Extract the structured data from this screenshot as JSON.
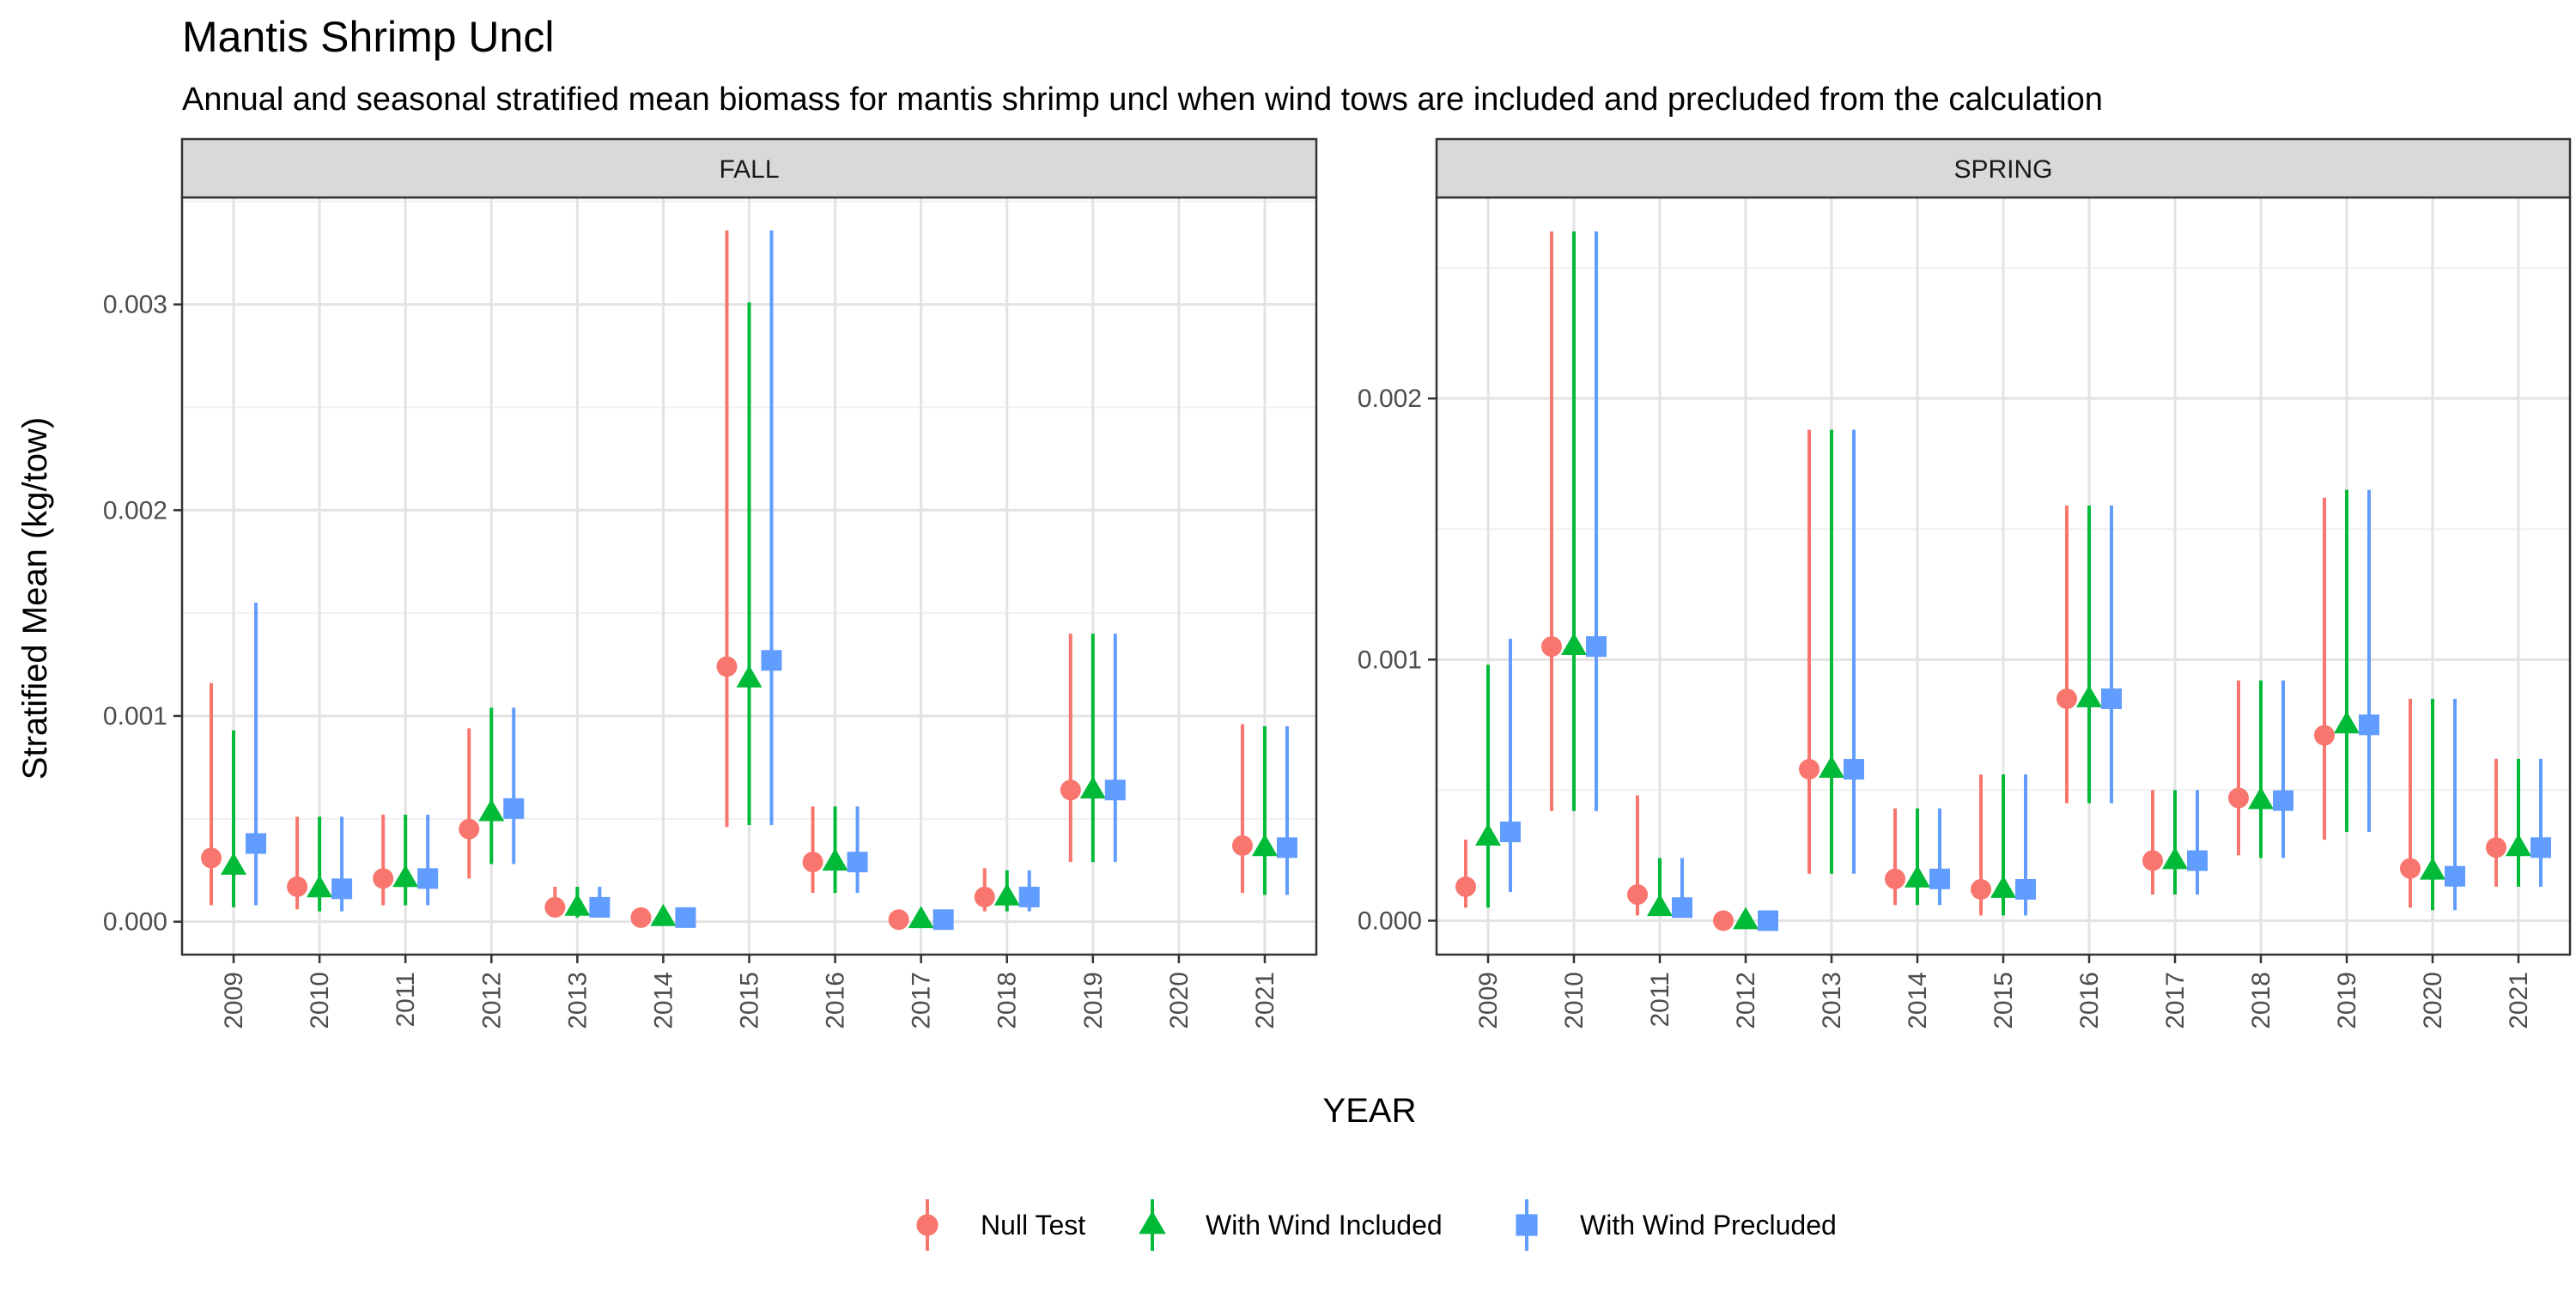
{
  "chart_data": {
    "type": "errorbar-facets",
    "title": "Mantis Shrimp Uncl",
    "subtitle": "Annual and seasonal stratified mean biomass for mantis shrimp uncl when wind tows are included and precluded from the calculation",
    "xlabel": "YEAR",
    "ylabel": "Stratified Mean (kg/tow)",
    "legend": {
      "position": "bottom",
      "series": [
        {
          "name": "Null Test",
          "color": "#F8766D",
          "shape": "circle"
        },
        {
          "name": "With Wind Included",
          "color": "#00BA38",
          "shape": "triangle"
        },
        {
          "name": "With Wind Precluded",
          "color": "#619CFF",
          "shape": "square"
        }
      ]
    },
    "years": [
      "2009",
      "2010",
      "2011",
      "2012",
      "2013",
      "2014",
      "2015",
      "2016",
      "2017",
      "2018",
      "2019",
      "2020",
      "2021"
    ],
    "panels": [
      {
        "label": "FALL",
        "ylim": [
          -0.00016,
          0.00352
        ],
        "yticks": [
          0,
          0.001,
          0.002,
          0.003
        ],
        "ytick_labels": [
          "0.000",
          "0.001",
          "0.002",
          "0.003"
        ],
        "series": [
          {
            "name": "Null Test",
            "points": [
              {
                "x": "2009",
                "y": 0.00031,
                "lo": 8e-05,
                "hi": 0.00116
              },
              {
                "x": "2010",
                "y": 0.00017,
                "lo": 6e-05,
                "hi": 0.00051
              },
              {
                "x": "2011",
                "y": 0.00021,
                "lo": 8e-05,
                "hi": 0.00052
              },
              {
                "x": "2012",
                "y": 0.00045,
                "lo": 0.00021,
                "hi": 0.00094
              },
              {
                "x": "2013",
                "y": 7e-05,
                "lo": 2e-05,
                "hi": 0.00017
              },
              {
                "x": "2014",
                "y": 2e-05,
                "lo": 0.0,
                "hi": 6e-05
              },
              {
                "x": "2015",
                "y": 0.00124,
                "lo": 0.00046,
                "hi": 0.00336
              },
              {
                "x": "2016",
                "y": 0.00029,
                "lo": 0.00014,
                "hi": 0.00056
              },
              {
                "x": "2017",
                "y": 1e-05,
                "lo": 0.0,
                "hi": 3e-05
              },
              {
                "x": "2018",
                "y": 0.00012,
                "lo": 5e-05,
                "hi": 0.00026
              },
              {
                "x": "2019",
                "y": 0.00064,
                "lo": 0.00029,
                "hi": 0.0014
              },
              {
                "x": "2021",
                "y": 0.00037,
                "lo": 0.00014,
                "hi": 0.00096
              }
            ]
          },
          {
            "name": "With Wind Included",
            "points": [
              {
                "x": "2009",
                "y": 0.00027,
                "lo": 7e-05,
                "hi": 0.00093
              },
              {
                "x": "2010",
                "y": 0.00016,
                "lo": 5e-05,
                "hi": 0.00051
              },
              {
                "x": "2011",
                "y": 0.00021,
                "lo": 8e-05,
                "hi": 0.00052
              },
              {
                "x": "2012",
                "y": 0.00053,
                "lo": 0.00028,
                "hi": 0.00104
              },
              {
                "x": "2013",
                "y": 7e-05,
                "lo": 2e-05,
                "hi": 0.00017
              },
              {
                "x": "2014",
                "y": 2e-05,
                "lo": 0.0,
                "hi": 6e-05
              },
              {
                "x": "2015",
                "y": 0.00118,
                "lo": 0.00047,
                "hi": 0.00301
              },
              {
                "x": "2016",
                "y": 0.00029,
                "lo": 0.00014,
                "hi": 0.00056
              },
              {
                "x": "2017",
                "y": 1e-05,
                "lo": 0.0,
                "hi": 3e-05
              },
              {
                "x": "2018",
                "y": 0.00012,
                "lo": 5e-05,
                "hi": 0.00025
              },
              {
                "x": "2019",
                "y": 0.00064,
                "lo": 0.00029,
                "hi": 0.0014
              },
              {
                "x": "2021",
                "y": 0.00036,
                "lo": 0.00013,
                "hi": 0.00095
              }
            ]
          },
          {
            "name": "With Wind Precluded",
            "points": [
              {
                "x": "2009",
                "y": 0.00038,
                "lo": 8e-05,
                "hi": 0.00155
              },
              {
                "x": "2010",
                "y": 0.00016,
                "lo": 5e-05,
                "hi": 0.00051
              },
              {
                "x": "2011",
                "y": 0.00021,
                "lo": 8e-05,
                "hi": 0.00052
              },
              {
                "x": "2012",
                "y": 0.00055,
                "lo": 0.00028,
                "hi": 0.00104
              },
              {
                "x": "2013",
                "y": 7e-05,
                "lo": 2e-05,
                "hi": 0.00017
              },
              {
                "x": "2014",
                "y": 2e-05,
                "lo": 0.0,
                "hi": 6e-05
              },
              {
                "x": "2015",
                "y": 0.00127,
                "lo": 0.00047,
                "hi": 0.00336
              },
              {
                "x": "2016",
                "y": 0.00029,
                "lo": 0.00014,
                "hi": 0.00056
              },
              {
                "x": "2017",
                "y": 1e-05,
                "lo": 0.0,
                "hi": 3e-05
              },
              {
                "x": "2018",
                "y": 0.00012,
                "lo": 5e-05,
                "hi": 0.00025
              },
              {
                "x": "2019",
                "y": 0.00064,
                "lo": 0.00029,
                "hi": 0.0014
              },
              {
                "x": "2021",
                "y": 0.00036,
                "lo": 0.00013,
                "hi": 0.00095
              }
            ]
          }
        ]
      },
      {
        "label": "SPRING",
        "ylim": [
          -0.00013,
          0.00277
        ],
        "yticks": [
          0,
          0.001,
          0.002
        ],
        "ytick_labels": [
          "0.000",
          "0.001",
          "0.002"
        ],
        "series": [
          {
            "name": "Null Test",
            "points": [
              {
                "x": "2009",
                "y": 0.00013,
                "lo": 5e-05,
                "hi": 0.00031
              },
              {
                "x": "2010",
                "y": 0.00105,
                "lo": 0.00042,
                "hi": 0.00264
              },
              {
                "x": "2011",
                "y": 0.0001,
                "lo": 2e-05,
                "hi": 0.00048
              },
              {
                "x": "2012",
                "y": 0.0,
                "lo": 0.0,
                "hi": 1e-05
              },
              {
                "x": "2013",
                "y": 0.00058,
                "lo": 0.00018,
                "hi": 0.00188
              },
              {
                "x": "2014",
                "y": 0.00016,
                "lo": 6e-05,
                "hi": 0.00043
              },
              {
                "x": "2015",
                "y": 0.00012,
                "lo": 2e-05,
                "hi": 0.00056
              },
              {
                "x": "2016",
                "y": 0.00085,
                "lo": 0.00045,
                "hi": 0.00159
              },
              {
                "x": "2017",
                "y": 0.00023,
                "lo": 0.0001,
                "hi": 0.0005
              },
              {
                "x": "2018",
                "y": 0.00047,
                "lo": 0.00025,
                "hi": 0.00092
              },
              {
                "x": "2019",
                "y": 0.00071,
                "lo": 0.00031,
                "hi": 0.00162
              },
              {
                "x": "2020",
                "y": 0.0002,
                "lo": 5e-05,
                "hi": 0.00085
              },
              {
                "x": "2021",
                "y": 0.00028,
                "lo": 0.00013,
                "hi": 0.00062
              }
            ]
          },
          {
            "name": "With Wind Included",
            "points": [
              {
                "x": "2009",
                "y": 0.00032,
                "lo": 5e-05,
                "hi": 0.00098
              },
              {
                "x": "2010",
                "y": 0.00105,
                "lo": 0.00042,
                "hi": 0.00264
              },
              {
                "x": "2011",
                "y": 5e-05,
                "lo": 2e-05,
                "hi": 0.00024
              },
              {
                "x": "2012",
                "y": 0.0,
                "lo": 0.0,
                "hi": 1e-05
              },
              {
                "x": "2013",
                "y": 0.00058,
                "lo": 0.00018,
                "hi": 0.00188
              },
              {
                "x": "2014",
                "y": 0.00016,
                "lo": 6e-05,
                "hi": 0.00043
              },
              {
                "x": "2015",
                "y": 0.00012,
                "lo": 2e-05,
                "hi": 0.00056
              },
              {
                "x": "2016",
                "y": 0.00085,
                "lo": 0.00045,
                "hi": 0.00159
              },
              {
                "x": "2017",
                "y": 0.00023,
                "lo": 0.0001,
                "hi": 0.0005
              },
              {
                "x": "2018",
                "y": 0.00046,
                "lo": 0.00024,
                "hi": 0.00092
              },
              {
                "x": "2019",
                "y": 0.00075,
                "lo": 0.00034,
                "hi": 0.00165
              },
              {
                "x": "2020",
                "y": 0.00019,
                "lo": 4e-05,
                "hi": 0.00085
              },
              {
                "x": "2021",
                "y": 0.00028,
                "lo": 0.00013,
                "hi": 0.00062
              }
            ]
          },
          {
            "name": "With Wind Precluded",
            "points": [
              {
                "x": "2009",
                "y": 0.00034,
                "lo": 0.00011,
                "hi": 0.00108
              },
              {
                "x": "2010",
                "y": 0.00105,
                "lo": 0.00042,
                "hi": 0.00264
              },
              {
                "x": "2011",
                "y": 5e-05,
                "lo": 2e-05,
                "hi": 0.00024
              },
              {
                "x": "2012",
                "y": 0.0,
                "lo": 0.0,
                "hi": 1e-05
              },
              {
                "x": "2013",
                "y": 0.00058,
                "lo": 0.00018,
                "hi": 0.00188
              },
              {
                "x": "2014",
                "y": 0.00016,
                "lo": 6e-05,
                "hi": 0.00043
              },
              {
                "x": "2015",
                "y": 0.00012,
                "lo": 2e-05,
                "hi": 0.00056
              },
              {
                "x": "2016",
                "y": 0.00085,
                "lo": 0.00045,
                "hi": 0.00159
              },
              {
                "x": "2017",
                "y": 0.00023,
                "lo": 0.0001,
                "hi": 0.0005
              },
              {
                "x": "2018",
                "y": 0.00046,
                "lo": 0.00024,
                "hi": 0.00092
              },
              {
                "x": "2019",
                "y": 0.00075,
                "lo": 0.00034,
                "hi": 0.00165
              },
              {
                "x": "2020",
                "y": 0.00017,
                "lo": 4e-05,
                "hi": 0.00085
              },
              {
                "x": "2021",
                "y": 0.00028,
                "lo": 0.00013,
                "hi": 0.00062
              }
            ]
          }
        ]
      }
    ]
  }
}
